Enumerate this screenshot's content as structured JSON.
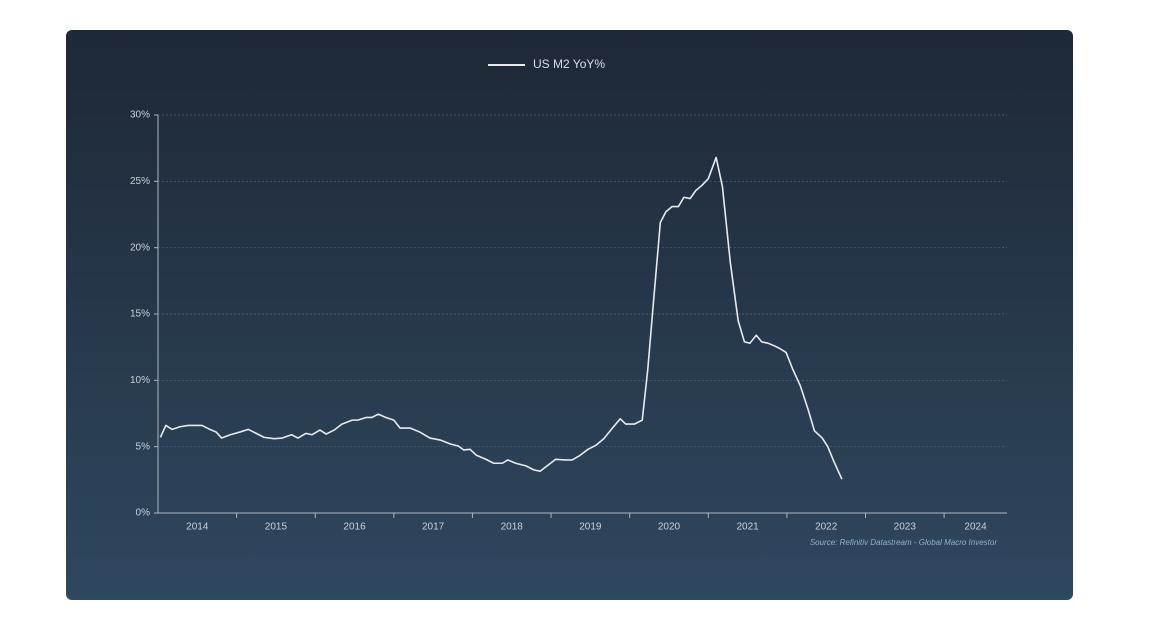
{
  "chart_data": {
    "type": "line",
    "x": [
      2014.03,
      2014.1,
      2014.18,
      2014.28,
      2014.38,
      2014.48,
      2014.56,
      2014.66,
      2014.74,
      2014.81,
      2014.92,
      2015.04,
      2015.15,
      2015.25,
      2015.35,
      2015.48,
      2015.58,
      2015.7,
      2015.78,
      2015.88,
      2015.96,
      2016.06,
      2016.14,
      2016.24,
      2016.34,
      2016.47,
      2016.54,
      2016.65,
      2016.72,
      2016.8,
      2016.9,
      2017.0,
      2017.08,
      2017.21,
      2017.33,
      2017.46,
      2017.59,
      2017.72,
      2017.82,
      2017.89,
      2017.97,
      2018.05,
      2018.17,
      2018.27,
      2018.38,
      2018.45,
      2018.55,
      2018.68,
      2018.78,
      2018.86,
      2018.96,
      2019.06,
      2019.17,
      2019.27,
      2019.37,
      2019.47,
      2019.57,
      2019.67,
      2019.78,
      2019.88,
      2019.95,
      2020.06,
      2020.16,
      2020.23,
      2020.31,
      2020.39,
      2020.46,
      2020.54,
      2020.62,
      2020.69,
      2020.77,
      2020.84,
      2020.92,
      2021.0,
      2021.1,
      2021.18,
      2021.28,
      2021.38,
      2021.46,
      2021.53,
      2021.61,
      2021.68,
      2021.76,
      2021.84,
      2021.91,
      2021.99,
      2022.07,
      2022.17,
      2022.27,
      2022.35,
      2022.45,
      2022.52,
      2022.6,
      2022.7
    ],
    "series": [
      {
        "name": "US M2 YoY%",
        "color": "#e6eaee",
        "values": [
          5.7,
          6.6,
          6.3,
          6.5,
          6.6,
          6.6,
          6.6,
          6.3,
          6.1,
          5.65,
          5.9,
          6.1,
          6.3,
          6.0,
          5.7,
          5.6,
          5.65,
          5.9,
          5.65,
          6.0,
          5.9,
          6.25,
          5.95,
          6.25,
          6.7,
          7.0,
          7.0,
          7.2,
          7.2,
          7.45,
          7.2,
          7.0,
          6.4,
          6.4,
          6.1,
          5.65,
          5.5,
          5.2,
          5.05,
          4.75,
          4.8,
          4.35,
          4.05,
          3.75,
          3.75,
          4.0,
          3.75,
          3.55,
          3.25,
          3.15,
          3.6,
          4.05,
          4.0,
          4.0,
          4.35,
          4.8,
          5.1,
          5.6,
          6.4,
          7.1,
          6.7,
          6.7,
          7.0,
          10.8,
          16.4,
          21.9,
          22.7,
          23.1,
          23.1,
          23.8,
          23.7,
          24.3,
          24.7,
          25.2,
          26.8,
          24.6,
          18.9,
          14.5,
          12.9,
          12.8,
          13.4,
          12.9,
          12.8,
          12.6,
          12.4,
          12.1,
          10.9,
          9.6,
          7.8,
          6.2,
          5.65,
          5.0,
          3.85,
          2.55
        ]
      }
    ],
    "xlim": [
      2014,
      2024.8
    ],
    "xticks": [
      {
        "value": 2014.5,
        "label": "2014"
      },
      {
        "value": 2015.5,
        "label": "2015"
      },
      {
        "value": 2016.5,
        "label": "2016"
      },
      {
        "value": 2017.5,
        "label": "2017"
      },
      {
        "value": 2018.5,
        "label": "2018"
      },
      {
        "value": 2019.5,
        "label": "2019"
      },
      {
        "value": 2020.5,
        "label": "2020"
      },
      {
        "value": 2021.5,
        "label": "2021"
      },
      {
        "value": 2022.5,
        "label": "2022"
      },
      {
        "value": 2023.5,
        "label": "2023"
      },
      {
        "value": 2024.4,
        "label": "2024"
      }
    ],
    "ylim": [
      0,
      30
    ],
    "yticks": [
      {
        "value": 0,
        "label": "0%"
      },
      {
        "value": 5,
        "label": "5%"
      },
      {
        "value": 10,
        "label": "10%"
      },
      {
        "value": 15,
        "label": "15%"
      },
      {
        "value": 20,
        "label": "20%"
      },
      {
        "value": 25,
        "label": "25%"
      },
      {
        "value": 30,
        "label": "30%"
      }
    ],
    "grid": true,
    "legend": "top",
    "source": "Source: Refinitiv Datastream - Global Macro Investor"
  }
}
